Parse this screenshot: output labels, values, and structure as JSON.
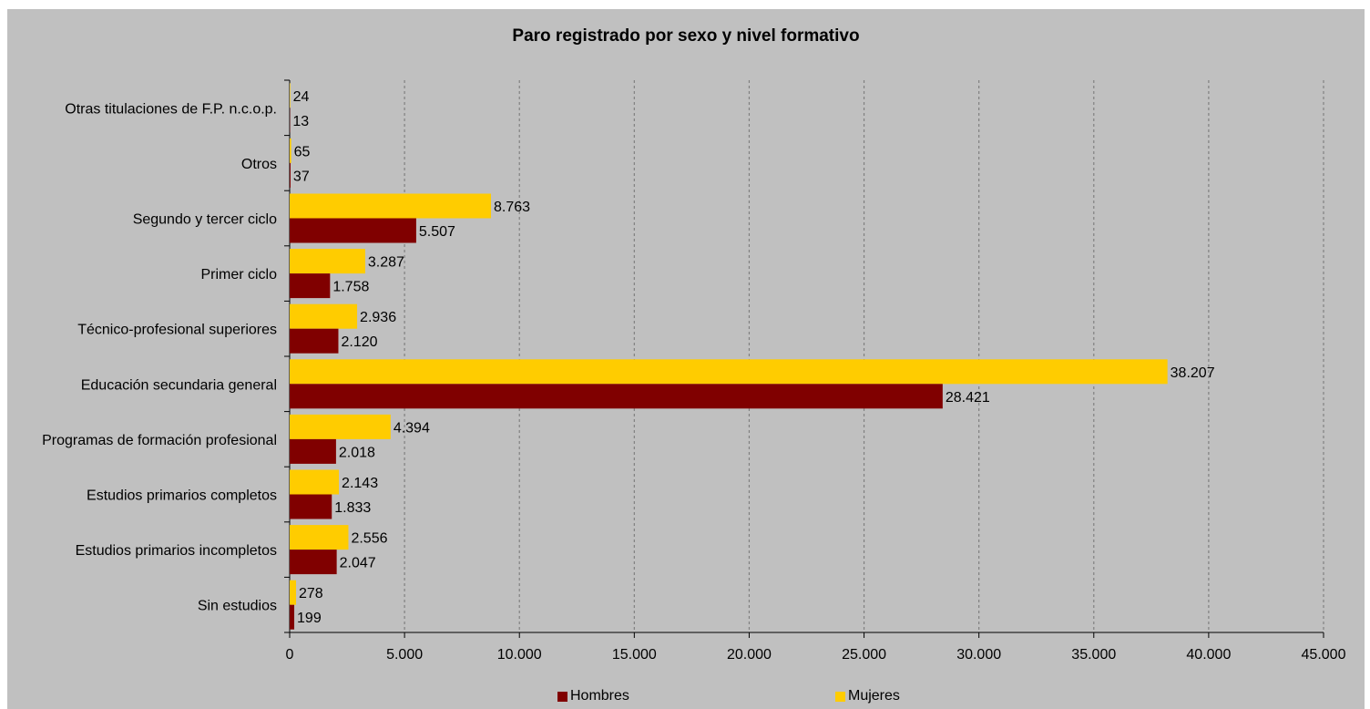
{
  "chart_data": {
    "type": "bar",
    "orientation": "horizontal",
    "title": "Paro registrado por sexo y nivel formativo",
    "xlabel": "",
    "ylabel": "",
    "categories": [
      "Otras titulaciones de F.P. n.c.o.p.",
      "Otros",
      "Segundo y tercer ciclo",
      "Primer ciclo",
      "Técnico-profesional superiores",
      "Educación secundaria general",
      "Programas de formación profesional",
      "Estudios primarios completos",
      "Estudios primarios incompletos",
      "Sin estudios"
    ],
    "series": [
      {
        "name": "Hombres",
        "color": "#800000",
        "values": [
          13,
          37,
          5507,
          1758,
          2120,
          28421,
          2018,
          1833,
          2047,
          199
        ],
        "labels": [
          "13",
          "37",
          "5.507",
          "1.758",
          "2.120",
          "28.421",
          "2.018",
          "1.833",
          "2.047",
          "199"
        ]
      },
      {
        "name": "Mujeres",
        "color": "#ffcc00",
        "values": [
          24,
          65,
          8763,
          3287,
          2936,
          38207,
          4394,
          2143,
          2556,
          278
        ],
        "labels": [
          "24",
          "65",
          "8.763",
          "3.287",
          "2.936",
          "38.207",
          "4.394",
          "2.143",
          "2.556",
          "278"
        ]
      }
    ],
    "xlim": [
      0,
      45000
    ],
    "xticks": [
      0,
      5000,
      10000,
      15000,
      20000,
      25000,
      30000,
      35000,
      40000,
      45000
    ],
    "xtick_labels": [
      "0",
      "5.000",
      "10.000",
      "15.000",
      "20.000",
      "25.000",
      "30.000",
      "35.000",
      "40.000",
      "45.000"
    ],
    "grid": true,
    "legend_position": "bottom",
    "background": "#c0c0c0"
  }
}
